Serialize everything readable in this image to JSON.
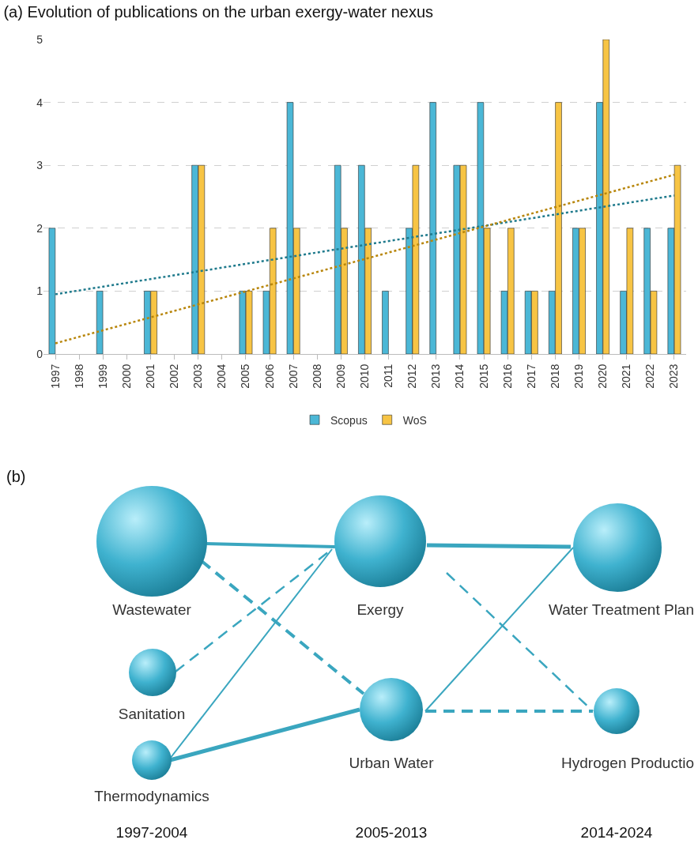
{
  "chart_data": [
    {
      "type": "bar",
      "title": "(a) Evolution of publications on the urban exergy-water nexus",
      "categories": [
        "1997",
        "1998",
        "1999",
        "2000",
        "2001",
        "2002",
        "2003",
        "2004",
        "2005",
        "2006",
        "2007",
        "2008",
        "2009",
        "2010",
        "2011",
        "2012",
        "2013",
        "2014",
        "2015",
        "2016",
        "2017",
        "2018",
        "2019",
        "2020",
        "2021",
        "2022",
        "2023"
      ],
      "series": [
        {
          "name": "Scopus",
          "color": "#4bb7d6",
          "values": [
            2,
            null,
            1,
            null,
            1,
            null,
            3,
            null,
            1,
            1,
            4,
            null,
            3,
            3,
            1,
            2,
            4,
            3,
            4,
            1,
            1,
            1,
            2,
            4,
            1,
            2,
            2
          ]
        },
        {
          "name": "WoS",
          "color": "#f7c444",
          "values": [
            null,
            null,
            null,
            null,
            1,
            null,
            3,
            null,
            1,
            2,
            2,
            null,
            2,
            2,
            null,
            3,
            null,
            3,
            2,
            2,
            1,
            4,
            2,
            5,
            2,
            1,
            3
          ]
        },
        {
          "type": "line",
          "color": "#1f7a8c",
          "values": [
            0.95,
            null,
            null,
            null,
            null,
            null,
            null,
            null,
            null,
            null,
            null,
            null,
            null,
            null,
            null,
            null,
            null,
            null,
            null,
            null,
            null,
            null,
            null,
            null,
            null,
            null,
            2.52
          ],
          "line_style": "dotted",
          "marker": "none"
        },
        {
          "type": "line",
          "color": "#b8860b",
          "values": [
            0.17,
            null,
            null,
            null,
            null,
            null,
            null,
            null,
            null,
            null,
            null,
            null,
            null,
            null,
            null,
            null,
            null,
            null,
            null,
            null,
            null,
            null,
            null,
            null,
            null,
            null,
            2.85
          ],
          "line_style": "dotted",
          "marker": "none"
        }
      ],
      "ylim": [
        0,
        5
      ],
      "yticks": [
        0,
        1,
        2,
        3,
        4,
        5
      ],
      "grid": "y",
      "legend": "bottom"
    },
    {
      "type": "other",
      "title": "(b)",
      "annotations": [
        "Wastewater",
        "Exergy",
        "Water Treatment Plan",
        "Sanitation",
        "Urban Water",
        "Thermodynamics",
        "Hydrogen Productio",
        "1997-2004",
        "2005-2013",
        "2014-2024"
      ]
    }
  ]
}
